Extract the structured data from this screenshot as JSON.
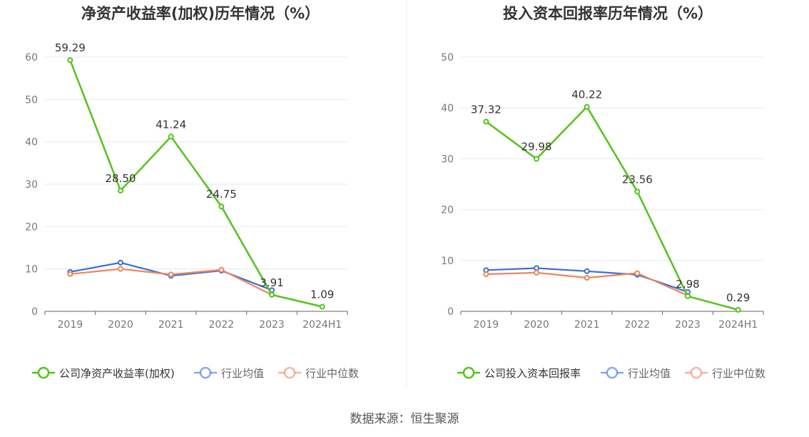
{
  "chart_data": [
    {
      "type": "line",
      "title": "净资产收益率(加权)历年情况（%）",
      "categories": [
        "2019",
        "2020",
        "2021",
        "2022",
        "2023",
        "2024H1"
      ],
      "ylim": [
        0,
        60
      ],
      "yticks": [
        "0",
        "10",
        "20",
        "30",
        "40",
        "50",
        "60"
      ],
      "grid": true,
      "legend_position": "bottom",
      "series": [
        {
          "name": "公司净资产收益率(加权)",
          "color": "#52c41a",
          "values": [
            59.29,
            28.5,
            41.24,
            24.75,
            3.91,
            1.09
          ],
          "labels": [
            "59.29",
            "28.50",
            "41.24",
            "24.75",
            "3.91",
            "1.09"
          ]
        },
        {
          "name": "行业均值",
          "color": "#3a6fd8",
          "values": [
            9.3,
            11.5,
            8.4,
            9.6,
            5.0,
            null
          ]
        },
        {
          "name": "行业中位数",
          "color": "#f0855a",
          "values": [
            8.8,
            10.0,
            8.7,
            9.8,
            3.9,
            null
          ]
        }
      ]
    },
    {
      "type": "line",
      "title": "投入资本回报率历年情况（%）",
      "categories": [
        "2019",
        "2020",
        "2021",
        "2022",
        "2023",
        "2024H1"
      ],
      "ylim": [
        0,
        50
      ],
      "yticks": [
        "0",
        "10",
        "20",
        "30",
        "40",
        "50"
      ],
      "grid": true,
      "legend_position": "bottom",
      "series": [
        {
          "name": "公司投入资本回报率",
          "color": "#52c41a",
          "values": [
            37.32,
            29.98,
            40.22,
            23.56,
            2.98,
            0.29
          ],
          "labels": [
            "37.32",
            "29.98",
            "40.22",
            "23.56",
            "2.98",
            "0.29"
          ]
        },
        {
          "name": "行业均值",
          "color": "#3a6fd8",
          "values": [
            8.1,
            8.5,
            7.9,
            7.2,
            3.8,
            null
          ]
        },
        {
          "name": "行业中位数",
          "color": "#f0855a",
          "values": [
            7.3,
            7.6,
            6.6,
            7.5,
            3.1,
            null
          ]
        }
      ]
    }
  ],
  "footer": {
    "source": "数据来源：恒生聚源"
  },
  "colors": {
    "grid": "#e3e8f0",
    "axis": "#666666",
    "tick_text": "#777777",
    "title": "#333333"
  }
}
